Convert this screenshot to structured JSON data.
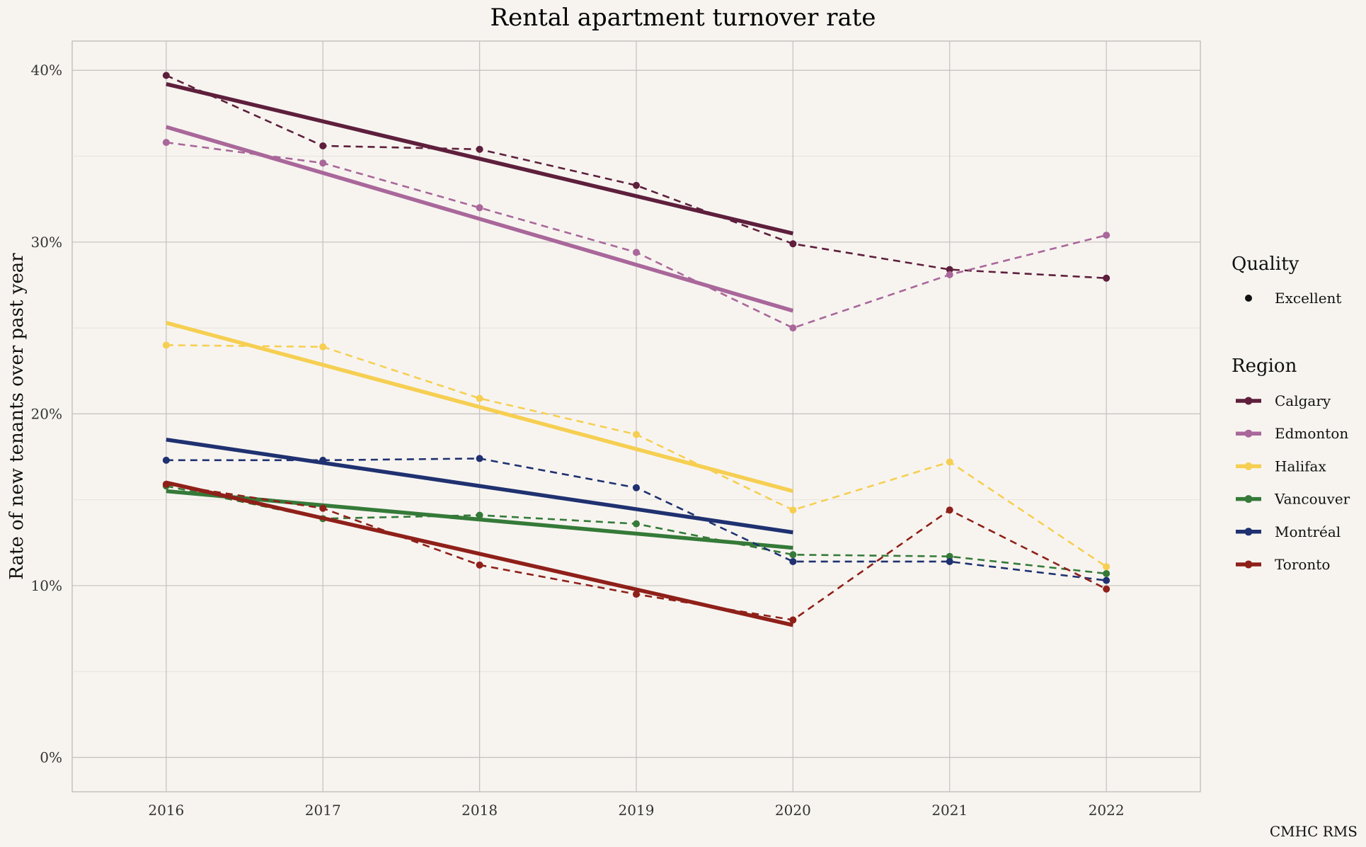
{
  "chart_data": {
    "type": "line",
    "title": "Rental apartment turnover rate",
    "ylabel": "Rate of new tenants over past year",
    "xlabel": "",
    "caption": "CMHC RMS",
    "x": [
      2016,
      2017,
      2018,
      2019,
      2020,
      2021,
      2022
    ],
    "xlim": [
      2015.4,
      2022.6
    ],
    "ylim": [
      -0.02,
      0.417
    ],
    "yticks": [
      0,
      0.1,
      0.2,
      0.3,
      0.4
    ],
    "ytick_labels": [
      "0%",
      "10%",
      "20%",
      "30%",
      "40%"
    ],
    "grid": true,
    "legend_position": "right",
    "legend_quality_title": "Quality",
    "legend_quality_items": [
      "Excellent"
    ],
    "legend_region_title": "Region",
    "series": [
      {
        "name": "Calgary",
        "color": "#5e1f3c",
        "values": [
          0.397,
          0.356,
          0.354,
          0.333,
          0.299,
          0.284,
          0.279
        ],
        "trend": [
          0.392,
          0.305
        ]
      },
      {
        "name": "Edmonton",
        "color": "#a9679a",
        "values": [
          0.358,
          0.346,
          0.32,
          0.294,
          0.25,
          0.281,
          0.304
        ],
        "trend": [
          0.367,
          0.26
        ]
      },
      {
        "name": "Halifax",
        "color": "#f6cf52",
        "values": [
          0.24,
          0.239,
          0.209,
          0.188,
          0.144,
          0.172,
          0.111
        ],
        "trend": [
          0.253,
          0.155
        ]
      },
      {
        "name": "Vancouver",
        "color": "#357a38",
        "values": [
          0.158,
          0.139,
          0.141,
          0.136,
          0.118,
          0.117,
          0.107
        ],
        "trend": [
          0.155,
          0.122
        ]
      },
      {
        "name": "Montréal",
        "color": "#1f3170",
        "values": [
          0.173,
          0.173,
          0.174,
          0.157,
          0.114,
          0.114,
          0.103
        ],
        "trend": [
          0.185,
          0.131
        ]
      },
      {
        "name": "Toronto",
        "color": "#8f2019",
        "values": [
          0.159,
          0.145,
          0.112,
          0.095,
          0.08,
          0.144,
          0.098
        ],
        "trend": [
          0.16,
          0.077
        ]
      }
    ]
  }
}
